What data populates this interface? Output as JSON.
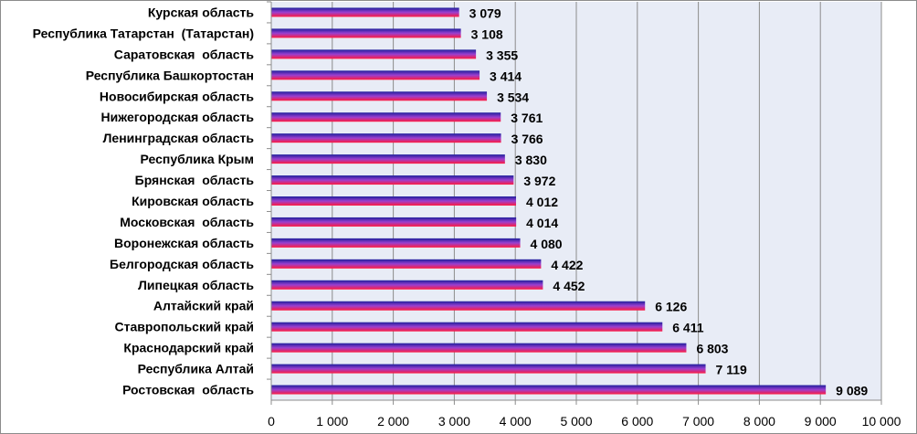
{
  "chart_data": {
    "type": "bar",
    "orientation": "horizontal",
    "title": "",
    "xlabel": "",
    "ylabel": "",
    "categories": [
      "Курская область",
      "Республика Татарстан  (Татарстан)",
      "Саратовская  область",
      "Республика Башкортостан",
      "Новосибирская область",
      "Нижегородская область",
      "Ленинградская область",
      "Республика Крым",
      "Брянская  область",
      "Кировская область",
      "Московская  область",
      "Воронежская область",
      "Белгородская область",
      "Липецкая область",
      "Алтайский край",
      "Ставропольский край",
      "Краснодарский край",
      "Республика Алтай",
      "Ростовская  область"
    ],
    "values": [
      3079,
      3108,
      3355,
      3414,
      3534,
      3761,
      3766,
      3830,
      3972,
      4012,
      4014,
      4080,
      4422,
      4452,
      6126,
      6411,
      6803,
      7119,
      9089
    ],
    "value_labels": [
      "3 079",
      "3 108",
      "3 355",
      "3 414",
      "3 534",
      "3 761",
      "3 766",
      "3 830",
      "3 972",
      "4 012",
      "4 014",
      "4 080",
      "4 422",
      "4 452",
      "6 126",
      "6 411",
      "6 803",
      "7 119",
      "9 089"
    ],
    "xlim": [
      0,
      10000
    ],
    "ticks": [
      0,
      1000,
      2000,
      3000,
      4000,
      5000,
      6000,
      7000,
      8000,
      9000,
      10000
    ],
    "tick_labels": [
      "0",
      "1 000",
      "2 000",
      "3 000",
      "4 000",
      "5 000",
      "6 000",
      "7 000",
      "8 000",
      "9 000",
      "10 000"
    ],
    "grid": "vertical",
    "legend": "none",
    "colors": {
      "plot_background": "#e8ecf6",
      "gridline": "#8c8c8c",
      "bar_top": "#1f1f9c",
      "bar_mid": "#9a3fd0",
      "bar_bottom": "#ff1a40"
    }
  }
}
